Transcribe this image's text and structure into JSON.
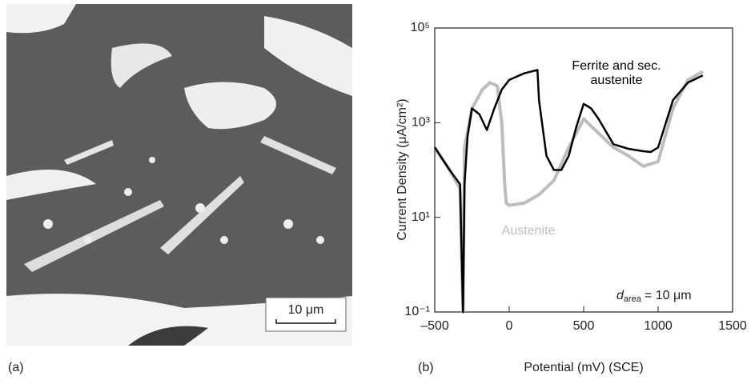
{
  "panels": {
    "a": "(a)",
    "b": "(b)"
  },
  "micrograph": {
    "scale_bar": "10 μm"
  },
  "chart_data": {
    "type": "line",
    "x_label": "Potential (mV) (SCE)",
    "y_label": "Current Density (μA/cm²)",
    "y_scale": "log",
    "xlim": [
      -500,
      1500
    ],
    "xticks": [
      {
        "value": -500,
        "label": "–500"
      },
      0,
      500,
      1000,
      1500
    ],
    "ylim": [
      0.1,
      100000
    ],
    "yticks": [
      {
        "value": 0.1,
        "label": "10⁻¹"
      },
      {
        "value": 10,
        "label": "10¹"
      },
      {
        "value": 1000,
        "label": "10³"
      },
      {
        "value": 100000,
        "label": "10⁵"
      }
    ],
    "annotation": {
      "symbol": "d",
      "subscript": "area",
      "text": "= 10 μm"
    },
    "series": [
      {
        "name": "Austenite",
        "color": "#bdbdbd",
        "x": [
          -500,
          -400,
          -330,
          -310,
          -300,
          -250,
          -180,
          -130,
          -80,
          -50,
          -30,
          -20,
          0,
          100,
          200,
          300,
          400,
          500,
          600,
          700,
          800,
          900,
          1000,
          1100,
          1200,
          1300
        ],
        "values": [
          300,
          100,
          40,
          0.1,
          300,
          2000,
          5000,
          7000,
          6000,
          1000,
          50,
          20,
          18,
          20,
          30,
          60,
          300,
          1200,
          600,
          300,
          200,
          120,
          150,
          2000,
          8000,
          12000
        ]
      },
      {
        "name": "Ferrite and sec. austenite",
        "color": "#000000",
        "x": [
          -500,
          -400,
          -330,
          -310,
          -300,
          -280,
          -250,
          -200,
          -150,
          -100,
          -50,
          0,
          100,
          190,
          200,
          250,
          300,
          350,
          400,
          450,
          500,
          550,
          600,
          700,
          800,
          900,
          950,
          1000,
          1100,
          1200,
          1300
        ],
        "values": [
          300,
          100,
          50,
          0.1,
          50,
          500,
          2000,
          1500,
          700,
          2000,
          5000,
          8000,
          11000,
          13000,
          3000,
          200,
          100,
          100,
          200,
          800,
          2500,
          2000,
          1200,
          350,
          280,
          250,
          240,
          300,
          3000,
          7000,
          10000
        ]
      }
    ]
  }
}
